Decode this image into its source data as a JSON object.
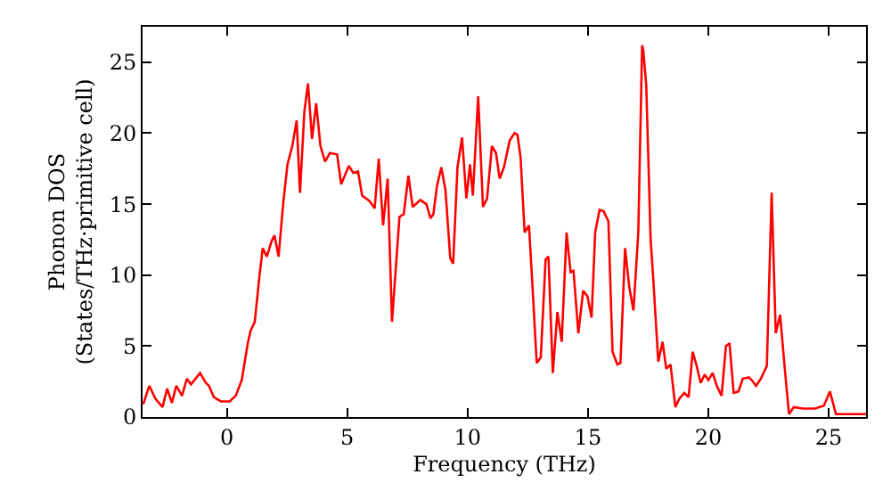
{
  "chart_data": {
    "type": "line",
    "xlabel": "Frequency (THz)",
    "ylabel": "Phonon DOS\n(States/THz·primitive cell)",
    "xlim": [
      -3.5,
      26.55
    ],
    "ylim": [
      0,
      27.5
    ],
    "xticks": [
      0,
      5,
      10,
      15,
      20,
      25
    ],
    "yticks": [
      0,
      5,
      10,
      15,
      20,
      25
    ],
    "marker": "none",
    "line_style": "solid",
    "series": [
      {
        "color": "#ff0000",
        "x": [
          -3.47,
          -3.22,
          -2.97,
          -2.67,
          -2.48,
          -2.28,
          -2.1,
          -1.86,
          -1.66,
          -1.49,
          -1.11,
          -0.87,
          -0.74,
          -0.54,
          -0.25,
          0.12,
          0.37,
          0.62,
          0.87,
          0.99,
          1.16,
          1.36,
          1.49,
          1.66,
          1.86,
          1.98,
          2.15,
          2.35,
          2.52,
          2.72,
          2.9,
          3.04,
          3.22,
          3.37,
          3.54,
          3.71,
          3.89,
          4.08,
          4.28,
          4.58,
          4.75,
          5.07,
          5.25,
          5.45,
          5.62,
          5.94,
          6.14,
          6.31,
          6.49,
          6.68,
          6.86,
          7.17,
          7.35,
          7.54,
          7.72,
          8.04,
          8.29,
          8.46,
          8.58,
          8.73,
          8.91,
          9.08,
          9.28,
          9.4,
          9.58,
          9.77,
          9.95,
          10.1,
          10.22,
          10.44,
          10.64,
          10.81,
          11.01,
          11.18,
          11.33,
          11.51,
          11.75,
          11.95,
          12.07,
          12.2,
          12.37,
          12.55,
          12.7,
          12.87,
          13.04,
          13.24,
          13.36,
          13.54,
          13.73,
          13.91,
          14.11,
          14.28,
          14.4,
          14.6,
          14.8,
          14.98,
          15.15,
          15.3,
          15.48,
          15.65,
          15.85,
          16.02,
          16.22,
          16.35,
          16.54,
          16.72,
          16.89,
          17.09,
          17.25,
          17.3,
          17.42,
          17.6,
          17.72,
          17.92,
          18.1,
          18.25,
          18.43,
          18.63,
          18.8,
          19.0,
          19.18,
          19.35,
          19.5,
          19.68,
          19.85,
          20.0,
          20.18,
          20.35,
          20.55,
          20.73,
          20.88,
          21.05,
          21.25,
          21.43,
          21.68,
          21.8,
          21.98,
          22.18,
          22.43,
          22.63,
          22.8,
          22.98,
          23.18,
          23.35,
          23.55,
          23.93,
          24.43,
          24.8,
          25.05,
          25.3,
          26.55
        ],
        "values": [
          0.9,
          2.2,
          1.3,
          0.7,
          2.0,
          1.0,
          2.2,
          1.5,
          2.7,
          2.3,
          3.1,
          2.4,
          2.2,
          1.4,
          1.1,
          1.1,
          1.5,
          2.6,
          5.2,
          6.1,
          6.7,
          10.0,
          11.9,
          11.3,
          12.4,
          12.8,
          11.3,
          15.2,
          17.8,
          19.1,
          20.9,
          15.8,
          21.5,
          23.5,
          19.6,
          22.1,
          19.1,
          18.0,
          18.6,
          18.5,
          16.4,
          17.7,
          17.2,
          17.3,
          15.6,
          15.2,
          14.7,
          18.2,
          13.5,
          16.8,
          6.7,
          14.1,
          14.3,
          17.0,
          14.8,
          15.3,
          15.0,
          14.0,
          14.3,
          16.3,
          17.6,
          16.0,
          11.2,
          10.8,
          17.6,
          19.7,
          15.4,
          17.8,
          15.6,
          22.6,
          14.8,
          15.4,
          19.1,
          18.6,
          16.8,
          17.6,
          19.5,
          20.0,
          19.9,
          18.3,
          13.0,
          13.5,
          9.1,
          3.8,
          4.2,
          11.1,
          11.3,
          3.1,
          7.4,
          5.3,
          13.0,
          10.2,
          10.3,
          5.9,
          8.9,
          8.5,
          7.0,
          13.0,
          14.6,
          14.5,
          13.8,
          4.6,
          3.7,
          3.8,
          11.9,
          9.1,
          7.5,
          13.0,
          26.2,
          25.8,
          23.4,
          12.6,
          9.5,
          3.9,
          5.3,
          3.4,
          3.7,
          0.7,
          1.3,
          1.7,
          1.4,
          4.6,
          3.7,
          2.4,
          3.0,
          2.6,
          3.1,
          2.2,
          1.5,
          5.0,
          5.2,
          1.7,
          1.8,
          2.7,
          2.8,
          2.6,
          2.2,
          2.7,
          3.6,
          15.8,
          5.9,
          7.2,
          3.3,
          0.2,
          0.7,
          0.6,
          0.6,
          0.8,
          1.8,
          0.2,
          0.2
        ]
      }
    ]
  }
}
